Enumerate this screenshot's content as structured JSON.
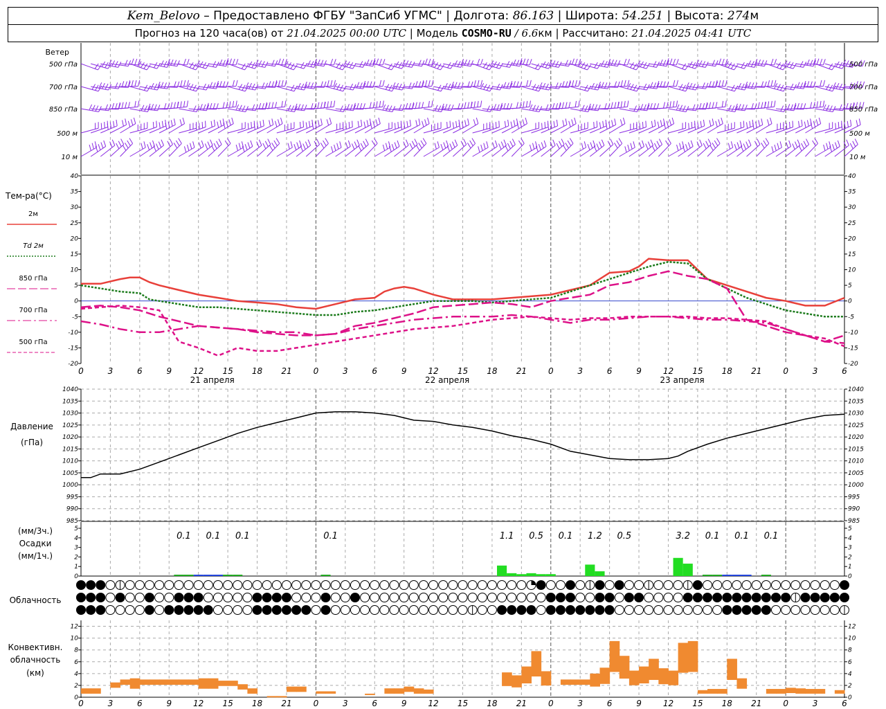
{
  "header": {
    "station": "Kem_Belovo",
    "dash": "–",
    "provider": "Предоставлено ФГБУ \"ЗапСиб УГМС\"",
    "sep": "|",
    "lon_label": "Долгота:",
    "lon_value": "86.163",
    "lat_label": "Широта:",
    "lat_value": "54.251",
    "alt_label": "Высота:",
    "alt_value": "274",
    "alt_unit": "м",
    "forecast_label": "Прогноз на 120 часа(ов)",
    "from_label": "от",
    "start_time": "21.04.2025 00:00 UTC",
    "model_label": "Модель",
    "model_name": "COSMO-RU",
    "model_slash": "/",
    "model_res": "6.6",
    "model_res_unit": "км",
    "calc_label": "Рассчитано:",
    "calc_time": "21.04.2025 04:41 UTC"
  },
  "wind_panel": {
    "title": "Ветер",
    "levels": [
      "500 гПа",
      "700 гПа",
      "850 гПа",
      "500 м",
      "10 м"
    ],
    "barb_color": "#8a2be2",
    "directions_deg": [
      250,
      255,
      260,
      285,
      300
    ]
  },
  "temp_panel": {
    "title": "Тем-ра(°C)",
    "legend": [
      {
        "label": "2м",
        "color": "#e8403a",
        "style": "solid"
      },
      {
        "label": "Td 2м",
        "color": "#1a7a1a",
        "style": "dotted"
      },
      {
        "label": "850 гПа",
        "color": "#dd1188",
        "style": "longdash"
      },
      {
        "label": "700 гПа",
        "color": "#dd1188",
        "style": "dashdot"
      },
      {
        "label": "500 гПа",
        "color": "#dd1188",
        "style": "short"
      }
    ],
    "yticks": [
      40,
      35,
      30,
      25,
      20,
      15,
      10,
      5,
      0,
      -5,
      -10,
      -15,
      -20
    ]
  },
  "pressure_panel": {
    "title": "Давление",
    "unit": "(гПа)",
    "yticks": [
      1040,
      1035,
      1030,
      1025,
      1020,
      1015,
      1010,
      1005,
      1000,
      995,
      990,
      985
    ]
  },
  "precip_panel": {
    "unit_3h": "(мм/3ч.)",
    "title": "Осадки",
    "unit_1h": "(мм/1ч.)",
    "yticks": [
      5,
      4,
      3,
      2,
      1,
      0
    ],
    "labels": [
      {
        "h": 10.5,
        "text": "0.1"
      },
      {
        "h": 13.5,
        "text": "0.1"
      },
      {
        "h": 16.5,
        "text": "0.1"
      },
      {
        "h": 25.5,
        "text": "0.1"
      },
      {
        "h": 43.5,
        "text": "1.1"
      },
      {
        "h": 46.5,
        "text": "0.5"
      },
      {
        "h": 49.5,
        "text": "0.1"
      },
      {
        "h": 52.5,
        "text": "1.2"
      },
      {
        "h": 55.5,
        "text": "0.5"
      },
      {
        "h": 61.5,
        "text": "3.2"
      },
      {
        "h": 64.5,
        "text": "0.1"
      },
      {
        "h": 67.5,
        "text": "0.1"
      },
      {
        "h": 70.5,
        "text": "0.1"
      }
    ]
  },
  "cloud_panel": {
    "title": "Облачность",
    "rows": [
      "1110200000000000000000000000000000000000000000310010210100200021000000000000001111111111110001000000000100111111111110001000000000200000000000",
      "1110100100111000001111000100100000000000000000001110011011000011111111111211111111111110111111110000000000000000000000000000001111000100000000",
      "1110000101111100001111110100000000000000200111101111111000000000001111100000002111110000010000000000000000000000200111100001010000200001111111"
    ]
  },
  "conv_panel": {
    "title_1": "Конвективн.",
    "title_2": "облачность",
    "unit": "(км)",
    "yticks": [
      12,
      10,
      8,
      6,
      4,
      2,
      0
    ],
    "bar_color": "#f08a30"
  },
  "time_axis": {
    "hour_labels": [
      "0",
      "3",
      "6",
      "9",
      "12",
      "15",
      "18",
      "21",
      "0",
      "3",
      "6",
      "9",
      "12",
      "15",
      "18",
      "21",
      "0",
      "3",
      "6",
      "9",
      "12",
      "15",
      "18",
      "21",
      "0",
      "3",
      "6"
    ],
    "day_labels": [
      "21 апреля",
      "22 апреля",
      "23 апреля"
    ]
  },
  "chart_data": {
    "type": "line",
    "hours": 78,
    "series": [
      {
        "name": "2м",
        "x": [
          0,
          2,
          4,
          5,
          6,
          7,
          8,
          10,
          12,
          14,
          16,
          18,
          20,
          22,
          24,
          26,
          28,
          30,
          31,
          32,
          33,
          34,
          36,
          38,
          40,
          42,
          44,
          46,
          48,
          50,
          52,
          54,
          56,
          57,
          58,
          60,
          62,
          64,
          66,
          68,
          70,
          72,
          74,
          76,
          78
        ],
        "y": [
          5.5,
          5.5,
          7,
          7.5,
          7.5,
          6,
          5,
          3.5,
          2,
          1,
          0,
          -0.5,
          -1,
          -2,
          -2.5,
          -1,
          0.5,
          1,
          3,
          4,
          4.5,
          4,
          2,
          0.5,
          0.5,
          0.5,
          1,
          1.5,
          2,
          3.5,
          5,
          9,
          9.5,
          11,
          13.5,
          13,
          13,
          7,
          5,
          3,
          1,
          0,
          -1.5,
          -1.5,
          1
        ]
      },
      {
        "name": "Td 2м",
        "x": [
          0,
          2,
          4,
          6,
          7,
          8,
          10,
          12,
          14,
          16,
          18,
          20,
          22,
          24,
          26,
          28,
          30,
          32,
          34,
          36,
          38,
          40,
          42,
          44,
          46,
          48,
          50,
          52,
          54,
          56,
          58,
          60,
          62,
          64,
          66,
          68,
          70,
          72,
          74,
          76,
          78
        ],
        "y": [
          5,
          4,
          3,
          2.5,
          0.5,
          0,
          -1,
          -2,
          -2,
          -2.5,
          -3,
          -3.5,
          -4,
          -4.5,
          -4.5,
          -3.5,
          -3,
          -2,
          -1,
          0,
          0,
          0,
          -0.5,
          0,
          0.5,
          1,
          3,
          5,
          7,
          9,
          11,
          12.5,
          12,
          7,
          4,
          1,
          -1,
          -3,
          -4,
          -5,
          -5
        ]
      },
      {
        "name": "850 гПа",
        "x": [
          0,
          2,
          4,
          6,
          8,
          10,
          12,
          14,
          16,
          18,
          20,
          22,
          24,
          26,
          28,
          30,
          32,
          34,
          36,
          38,
          40,
          42,
          44,
          46,
          48,
          50,
          52,
          54,
          56,
          58,
          60,
          62,
          64,
          66,
          68,
          70,
          72,
          74,
          76,
          78
        ],
        "y": [
          -2,
          -1.5,
          -2,
          -3,
          -5,
          -6.5,
          -8,
          -8.5,
          -9,
          -10,
          -10.5,
          -11,
          -11,
          -10.5,
          -8,
          -7,
          -5.5,
          -4,
          -2,
          -1.5,
          -1,
          -0.5,
          -1,
          -2,
          0,
          1,
          2,
          5,
          6,
          8,
          9.5,
          8,
          7,
          4,
          -6,
          -8,
          -10,
          -11,
          -13,
          -11
        ]
      },
      {
        "name": "700 гПа",
        "x": [
          0,
          2,
          4,
          6,
          8,
          10,
          12,
          14,
          16,
          18,
          20,
          22,
          24,
          26,
          28,
          30,
          32,
          34,
          36,
          38,
          40,
          42,
          44,
          46,
          48,
          50,
          52,
          54,
          56,
          58,
          60,
          62,
          64,
          66,
          68,
          70,
          72,
          74,
          76,
          78
        ],
        "y": [
          -6.5,
          -7.5,
          -9,
          -10,
          -10,
          -9,
          -8,
          -8.5,
          -9,
          -9.5,
          -10,
          -10,
          -11,
          -10.5,
          -9,
          -8,
          -7,
          -6,
          -5.5,
          -5,
          -5,
          -5,
          -4.5,
          -5,
          -6,
          -7,
          -6,
          -6,
          -5.5,
          -5,
          -5,
          -5.5,
          -6,
          -6,
          -6.5,
          -7,
          -9,
          -11,
          -13,
          -13.5
        ]
      },
      {
        "name": "500 гПа",
        "x": [
          0,
          2,
          4,
          6,
          8,
          10,
          12,
          14,
          16,
          18,
          20,
          22,
          24,
          26,
          28,
          30,
          32,
          34,
          36,
          38,
          40,
          42,
          44,
          46,
          48,
          50,
          52,
          54,
          56,
          58,
          60,
          62,
          64,
          66,
          68,
          70,
          72,
          74,
          76,
          78
        ],
        "y": [
          -2.5,
          -2,
          -1.5,
          -2,
          -3,
          -13,
          -15,
          -17.5,
          -15,
          -16,
          -16,
          -15,
          -14,
          -13,
          -12,
          -11,
          -10,
          -9,
          -8.5,
          -8,
          -7,
          -6,
          -5.5,
          -5,
          -5.5,
          -6,
          -5.5,
          -5.5,
          -5,
          -5,
          -5,
          -5,
          -5.5,
          -5.5,
          -6,
          -6.5,
          -9,
          -11,
          -12,
          -14.5
        ]
      },
      {
        "name": "Давление",
        "x": [
          0,
          1,
          2,
          3,
          4,
          6,
          8,
          10,
          12,
          14,
          16,
          18,
          20,
          22,
          24,
          26,
          28,
          30,
          32,
          34,
          36,
          38,
          40,
          42,
          44,
          46,
          48,
          50,
          52,
          54,
          56,
          58,
          60,
          61,
          62,
          64,
          66,
          68,
          70,
          72,
          74,
          76,
          78
        ],
        "y": [
          1003,
          1003,
          1004.5,
          1004.5,
          1004.5,
          1006.5,
          1009.5,
          1012.5,
          1015.5,
          1018.5,
          1021.5,
          1024,
          1026,
          1028,
          1030,
          1030.5,
          1030.5,
          1030,
          1029,
          1027,
          1026.5,
          1025,
          1024,
          1022.5,
          1020.5,
          1019,
          1017,
          1014,
          1012.5,
          1011,
          1010.5,
          1010.5,
          1011,
          1012,
          1014,
          1017,
          1019.5,
          1021.5,
          1023.5,
          1025.5,
          1027.5,
          1029,
          1029.5
        ]
      },
      {
        "name": "Осадки",
        "x": [
          43,
          44,
          45,
          46,
          47,
          48,
          52,
          53,
          61,
          62
        ],
        "y": [
          1.1,
          0.3,
          0.2,
          0.3,
          0.2,
          0.2,
          1.2,
          0.5,
          1.9,
          1.3
        ]
      },
      {
        "name": "Конвективн. облачность",
        "x": [
          0.5,
          1.5,
          3.5,
          4.5,
          5.5,
          6.5,
          7.5,
          8.5,
          9.5,
          10.5,
          11.5,
          12.5,
          13.5,
          14.5,
          15.5,
          16.5,
          17.5,
          19.5,
          20.5,
          21.5,
          22.5,
          24.5,
          25.5,
          29.5,
          31.5,
          32.5,
          33.5,
          34.5,
          35.5,
          37.5,
          38.5,
          43.5,
          44.5,
          45.5,
          46.5,
          47.5,
          49.5,
          50.5,
          51.5,
          52.5,
          53.5,
          54.5,
          55.5,
          56.5,
          57.5,
          58.5,
          59.5,
          60.5,
          61.5,
          62.5,
          63.5,
          64.5,
          65.5,
          66.5,
          67.5,
          68.5,
          69.5,
          70.5,
          71.5,
          72.5,
          73.5,
          74.5,
          75.5,
          76.5,
          77.5
        ],
        "y": [
          1.5,
          1.5,
          2.5,
          3,
          3.2,
          3,
          3,
          3,
          3,
          3,
          3,
          3.2,
          3.2,
          2.8,
          2.8,
          2.2,
          1.5,
          0.2,
          0.2,
          1.8,
          1.8,
          1,
          1,
          0.6,
          1.5,
          1.5,
          1.8,
          1.5,
          1.3,
          0,
          0,
          4.2,
          3.7,
          5.2,
          7.8,
          4.4,
          3,
          3,
          3,
          4,
          5,
          9.5,
          7,
          4.5,
          5.2,
          6.5,
          4.9,
          4.5,
          9.2,
          9.5,
          1.2,
          1.4,
          1.4,
          6.5,
          3.2,
          0,
          0,
          1.4,
          1.4,
          1.6,
          1.5,
          1.4,
          1.4,
          0,
          1.2
        ]
      }
    ],
    "xlabel": "",
    "ylim_temp": [
      -20,
      40
    ],
    "ylim_pressure": [
      985,
      1040
    ],
    "ylim_precip": [
      0,
      5
    ],
    "ylim_conv": [
      0,
      13
    ]
  }
}
